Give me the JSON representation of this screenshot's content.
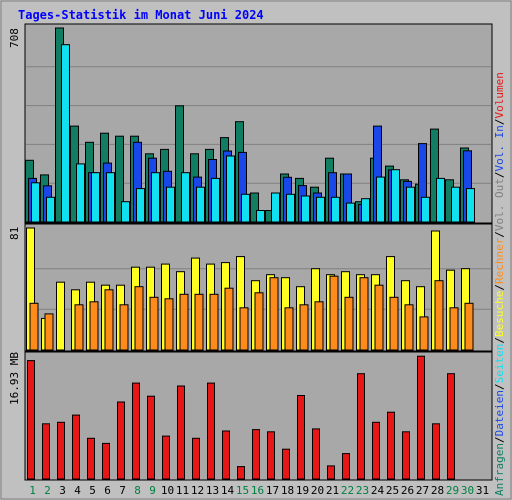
{
  "title": "Tages-Statistik im Monat Juni 2024",
  "colors": {
    "background": "#c0c0c0",
    "frame": "#a8a8a8",
    "title": "#0000ff",
    "hits": "#117e63",
    "files": "#1a48e8",
    "pages": "#11e0f0",
    "visits": "#ffff22",
    "sites": "#ff8c1a",
    "kbytes": "#e51717",
    "weekend_day": "#008040",
    "weekday": "#000000",
    "gridline": "#808080"
  },
  "chart_data": [
    {
      "type": "bar",
      "panel": "top",
      "ymax_label": "708",
      "ylim": [
        0,
        708
      ],
      "grid": true,
      "categories": [
        "1",
        "2",
        "3",
        "4",
        "5",
        "6",
        "7",
        "8",
        "9",
        "10",
        "11",
        "12",
        "13",
        "14",
        "15",
        "16",
        "17",
        "18",
        "19",
        "20",
        "21",
        "22",
        "23",
        "24",
        "25",
        "26",
        "27",
        "28",
        "29",
        "30",
        "31"
      ],
      "series": [
        {
          "name": "Anfragen",
          "color": "#117e63",
          "values": [
            225,
            172,
            708,
            350,
            291,
            324,
            313,
            313,
            249,
            265,
            424,
            249,
            265,
            308,
            366,
            106,
            42,
            175,
            159,
            127,
            233,
            175,
            74,
            233,
            204,
            154,
            138,
            339,
            154,
            270,
            0
          ]
        },
        {
          "name": "Dateien",
          "color": "#1a48e8",
          "values": [
            159,
            132,
            0,
            0,
            180,
            215,
            0,
            291,
            233,
            185,
            0,
            164,
            228,
            259,
            254,
            0,
            0,
            163,
            133,
            106,
            180,
            175,
            64,
            350,
            190,
            148,
            286,
            0,
            0,
            260,
            0
          ]
        },
        {
          "name": "Seiten",
          "color": "#11e0f0",
          "values": [
            143,
            90,
            647,
            212,
            180,
            180,
            74,
            122,
            180,
            127,
            180,
            127,
            159,
            241,
            101,
            42,
            106,
            101,
            95,
            90,
            90,
            69,
            85,
            164,
            191,
            127,
            90,
            159,
            127,
            122,
            0
          ]
        }
      ]
    },
    {
      "type": "bar",
      "panel": "middle",
      "ymax_label": "81",
      "ylim": [
        0,
        81
      ],
      "grid": true,
      "categories": [
        "1",
        "2",
        "3",
        "4",
        "5",
        "6",
        "7",
        "8",
        "9",
        "10",
        "11",
        "12",
        "13",
        "14",
        "15",
        "16",
        "17",
        "18",
        "19",
        "20",
        "21",
        "22",
        "23",
        "24",
        "25",
        "26",
        "27",
        "28",
        "29",
        "30",
        "31"
      ],
      "series": [
        {
          "name": "Besuche",
          "color": "#ffff22",
          "values": [
            81,
            21,
            45,
            40,
            45,
            43,
            43,
            55,
            55,
            57,
            52,
            61,
            57,
            58,
            62,
            46,
            50,
            48,
            42,
            54,
            50,
            52,
            50,
            50,
            62,
            46,
            42,
            79,
            53,
            54,
            0
          ]
        },
        {
          "name": "Rechner",
          "color": "#ff8c1a",
          "values": [
            31,
            24,
            0,
            30,
            32,
            40,
            30,
            42,
            35,
            34,
            37,
            37,
            37,
            41,
            28,
            38,
            48,
            28,
            30,
            32,
            49,
            35,
            48,
            43,
            35,
            30,
            22,
            46,
            28,
            31,
            0
          ]
        }
      ]
    },
    {
      "type": "bar",
      "panel": "bottom",
      "ymax_label": "16.93 MB",
      "ylim": [
        0,
        16.93
      ],
      "grid": false,
      "categories": [
        "1",
        "2",
        "3",
        "4",
        "5",
        "6",
        "7",
        "8",
        "9",
        "10",
        "11",
        "12",
        "13",
        "14",
        "15",
        "16",
        "17",
        "18",
        "19",
        "20",
        "21",
        "22",
        "23",
        "24",
        "25",
        "26",
        "27",
        "28",
        "29",
        "30",
        "31"
      ],
      "series": [
        {
          "name": "Volumen",
          "color": "#e51717",
          "values": [
            16.3,
            7.6,
            7.8,
            8.8,
            5.6,
            4.9,
            10.6,
            13.2,
            11.4,
            5.9,
            12.8,
            5.6,
            13.2,
            6.6,
            1.7,
            6.8,
            6.5,
            4.1,
            11.5,
            6.9,
            1.8,
            3.5,
            14.5,
            7.8,
            9.2,
            6.5,
            16.9,
            7.6,
            14.5,
            0,
            0
          ]
        }
      ]
    }
  ],
  "right_legend": [
    {
      "text": "Anfragen",
      "color": "#117e63"
    },
    {
      "text": "/",
      "color": "#000000"
    },
    {
      "text": "Dateien",
      "color": "#1a48e8"
    },
    {
      "text": "/",
      "color": "#000000"
    },
    {
      "text": "Seiten",
      "color": "#11e0f0"
    },
    {
      "text": "/",
      "color": "#000000"
    },
    {
      "text": "Besuche",
      "color": "#ffff22"
    },
    {
      "text": "/",
      "color": "#000000"
    },
    {
      "text": "Rechner",
      "color": "#ff8c1a"
    },
    {
      "text": "/",
      "color": "#000000"
    },
    {
      "text": "Vol. Out",
      "color": "#808080"
    },
    {
      "text": "/",
      "color": "#000000"
    },
    {
      "text": "Vol. In",
      "color": "#1a48e8"
    },
    {
      "text": "/",
      "color": "#000000"
    },
    {
      "text": "Volumen",
      "color": "#e51717"
    }
  ],
  "weekend_days": [
    "1",
    "2",
    "8",
    "9",
    "15",
    "16",
    "22",
    "23",
    "29",
    "30"
  ]
}
